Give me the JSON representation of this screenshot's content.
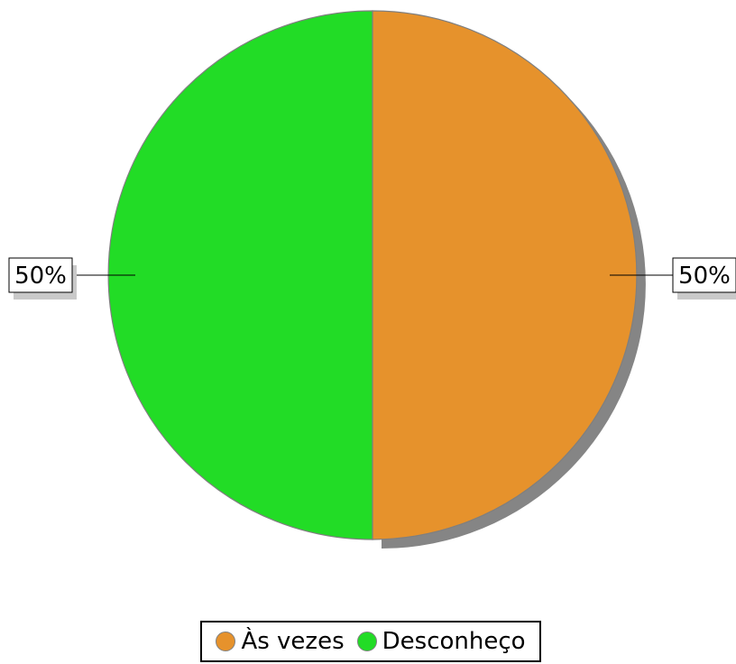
{
  "chart_data": {
    "type": "pie",
    "slices": [
      {
        "label": "Às vezes",
        "value": 50,
        "value_label": "50%",
        "color": "#e6922c"
      },
      {
        "label": "Desconheço",
        "value": 50,
        "value_label": "50%",
        "color": "#22dc26"
      }
    ],
    "legend_position": "bottom",
    "shadow": true,
    "start_angle_deg": 0,
    "direction": "clockwise"
  }
}
